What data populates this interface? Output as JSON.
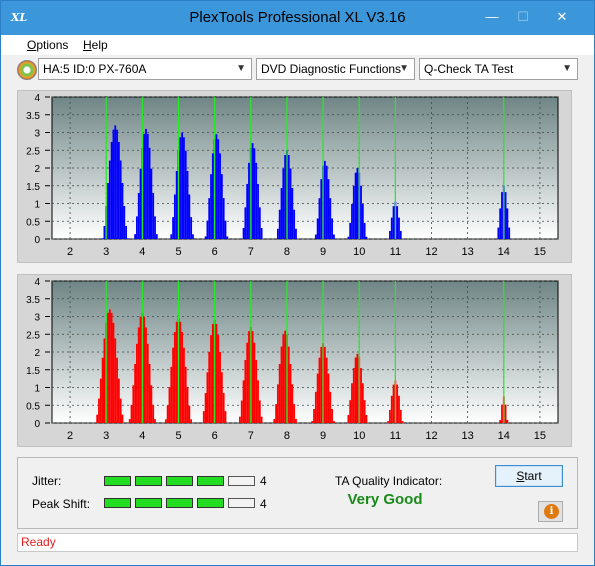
{
  "window": {
    "title": "PlexTools Professional XL V3.16",
    "icon_text": "XL",
    "minimize_glyph": "—",
    "maximize_glyph": "☐",
    "close_glyph": "✕"
  },
  "menu": {
    "items": [
      {
        "mnemonic": "O",
        "rest": "ptions"
      },
      {
        "mnemonic": "H",
        "rest": "elp"
      }
    ]
  },
  "toolbar": {
    "drive_icon": "disc-drive-icon",
    "drive_select": "HA:5 ID:0  PX-760A",
    "function_select": "DVD Diagnostic Functions",
    "test_select": "Q-Check TA Test",
    "dropdown_glyph": "▼"
  },
  "chart_data": [
    {
      "type": "area",
      "name": "land-distribution",
      "color": "#0000ff",
      "x_ticks": [
        "2",
        "3",
        "4",
        "5",
        "6",
        "7",
        "8",
        "9",
        "10",
        "11",
        "12",
        "13",
        "14",
        "15"
      ],
      "y_ticks": [
        "0",
        "0.5",
        "1",
        "1.5",
        "2",
        "2.5",
        "3",
        "3.5",
        "4"
      ],
      "xlim": [
        1.5,
        15.5
      ],
      "ylim": [
        0,
        4
      ],
      "grid": true,
      "marker_lines": [
        3,
        4,
        5,
        6,
        7,
        8,
        9,
        10,
        11,
        14
      ],
      "peaks": [
        {
          "center": 3.25,
          "height": 3.2,
          "width": 0.36
        },
        {
          "center": 4.1,
          "height": 3.1,
          "width": 0.33
        },
        {
          "center": 5.1,
          "height": 3.0,
          "width": 0.33
        },
        {
          "center": 6.05,
          "height": 2.95,
          "width": 0.32
        },
        {
          "center": 7.05,
          "height": 2.7,
          "width": 0.3
        },
        {
          "center": 8.0,
          "height": 2.5,
          "width": 0.3
        },
        {
          "center": 9.05,
          "height": 2.2,
          "width": 0.28
        },
        {
          "center": 9.95,
          "height": 2.0,
          "width": 0.27
        },
        {
          "center": 11.0,
          "height": 1.05,
          "width": 0.2
        },
        {
          "center": 14.0,
          "height": 1.5,
          "width": 0.2
        }
      ]
    },
    {
      "type": "area",
      "name": "pit-distribution",
      "color": "#ff0000",
      "x_ticks": [
        "2",
        "3",
        "4",
        "5",
        "6",
        "7",
        "8",
        "9",
        "10",
        "11",
        "12",
        "13",
        "14",
        "15"
      ],
      "y_ticks": [
        "0",
        "0.5",
        "1",
        "1.5",
        "2",
        "2.5",
        "3",
        "3.5",
        "4"
      ],
      "xlim": [
        1.5,
        15.5
      ],
      "ylim": [
        0,
        4
      ],
      "grid": true,
      "marker_lines": [
        3,
        4,
        5,
        6,
        7,
        8,
        9,
        10,
        11,
        14
      ],
      "peaks": [
        {
          "center": 3.1,
          "height": 3.2,
          "width": 0.4
        },
        {
          "center": 4.0,
          "height": 3.1,
          "width": 0.38
        },
        {
          "center": 5.0,
          "height": 2.95,
          "width": 0.38
        },
        {
          "center": 6.0,
          "height": 2.9,
          "width": 0.36
        },
        {
          "center": 7.0,
          "height": 2.7,
          "width": 0.34
        },
        {
          "center": 7.95,
          "height": 2.6,
          "width": 0.33
        },
        {
          "center": 9.0,
          "height": 2.25,
          "width": 0.32
        },
        {
          "center": 9.95,
          "height": 1.95,
          "width": 0.3
        },
        {
          "center": 11.0,
          "height": 1.2,
          "width": 0.22
        },
        {
          "center": 14.0,
          "height": 0.75,
          "width": 0.12
        }
      ]
    }
  ],
  "metrics": {
    "jitter_label": "Jitter:",
    "jitter_value": 4,
    "jitter_max": 5,
    "jitter_text": "4",
    "peak_shift_label": "Peak Shift:",
    "peak_shift_value": 4,
    "peak_shift_max": 5,
    "peak_shift_text": "4",
    "quality_label": "TA Quality Indicator:",
    "quality_value": "Very Good"
  },
  "buttons": {
    "start_mnemonic": "S",
    "start_rest": "tart",
    "info_glyph": "i"
  },
  "status": {
    "text": "Ready"
  }
}
